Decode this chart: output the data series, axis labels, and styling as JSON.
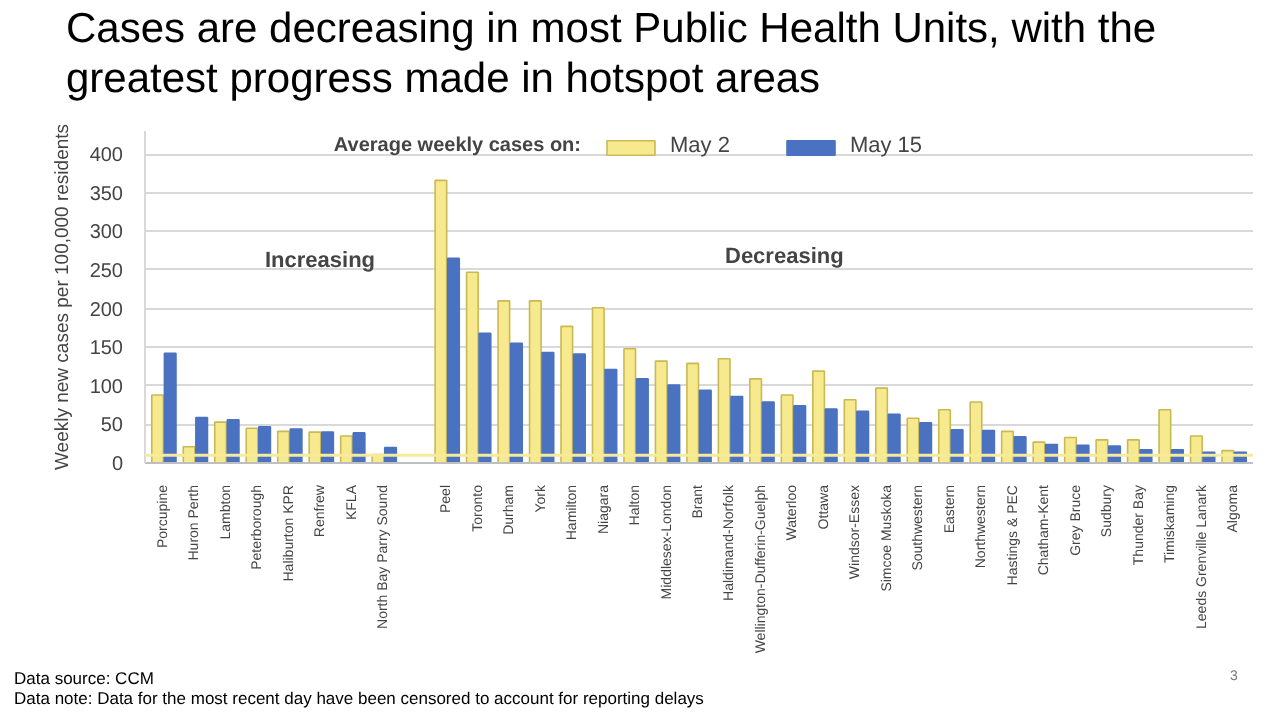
{
  "chart_data": {
    "type": "bar",
    "title": "Cases are decreasing in most Public Health Units, with the greatest progress made in hotspot areas",
    "ylabel": "Weekly new cases per 100,000 residents",
    "legend_title": "Average weekly cases on:",
    "categories": [
      "Porcupine",
      "Huron Perth",
      "Lambton",
      "Peterborough",
      "Haliburton KPR",
      "Renfrew",
      "KFLA",
      "North Bay Parry Sound",
      null,
      "Peel",
      "Toronto",
      "Durham",
      "York",
      "Hamilton",
      "Niagara",
      "Halton",
      "Middlesex-London",
      "Brant",
      "Haldimand-Norfolk",
      "Wellington-Dufferin-Guelph",
      "Waterloo",
      "Ottawa",
      "Windsor-Essex",
      "Simcoe Muskoka",
      "Southwestern",
      "Eastern",
      "Northwestern",
      "Hastings & PEC",
      "Chatham-Kent",
      "Grey Bruce",
      "Sudbury",
      "Thunder Bay",
      "Timiskaming",
      "Leeds Grenville Lanark",
      "Algoma"
    ],
    "series": [
      {
        "name": "May 2",
        "color": "#f7e98e",
        "values": [
          88,
          21,
          53,
          45,
          41,
          40,
          35,
          11,
          null,
          366,
          247,
          210,
          210,
          177,
          201,
          148,
          132,
          129,
          135,
          109,
          88,
          119,
          82,
          97,
          58,
          69,
          79,
          41,
          27,
          33,
          30,
          30,
          69,
          35,
          16
        ]
      },
      {
        "name": "May 15",
        "color": "#4a72c0",
        "values": [
          142,
          59,
          56,
          47,
          44,
          40,
          39,
          20,
          null,
          265,
          168,
          155,
          143,
          141,
          121,
          109,
          101,
          94,
          86,
          79,
          74,
          70,
          67,
          63,
          52,
          43,
          42,
          34,
          24,
          23,
          22,
          17,
          17,
          14,
          14
        ]
      }
    ],
    "ylim": [
      0,
      430
    ],
    "yticks": [
      0,
      50,
      100,
      150,
      200,
      250,
      300,
      350,
      400
    ],
    "grid": "y",
    "legend": "top",
    "ref_lines": [
      {
        "axis": "y",
        "value": 10,
        "label": null,
        "color": "#f5eb9a"
      }
    ],
    "annotations": [
      "Increasing",
      "Decreasing",
      "Data source: CCM",
      "Data note: Data for the most recent day have been censored to account for reporting delays",
      "3"
    ]
  }
}
